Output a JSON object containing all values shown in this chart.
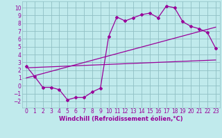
{
  "xlabel": "Windchill (Refroidissement éolien,°C)",
  "bg_color": "#c0eaec",
  "grid_color": "#90c0c4",
  "line_color": "#990099",
  "xlim": [
    -0.5,
    23.5
  ],
  "ylim": [
    -2.8,
    10.8
  ],
  "xticks": [
    0,
    1,
    2,
    3,
    4,
    5,
    6,
    7,
    8,
    9,
    10,
    11,
    12,
    13,
    14,
    15,
    16,
    17,
    18,
    19,
    20,
    21,
    22,
    23
  ],
  "yticks": [
    -2,
    -1,
    0,
    1,
    2,
    3,
    4,
    5,
    6,
    7,
    8,
    9,
    10
  ],
  "line1_x": [
    0,
    1,
    2,
    3,
    4,
    5,
    6,
    7,
    8,
    9,
    10,
    11,
    12,
    13,
    14,
    15,
    16,
    17,
    18,
    19,
    20,
    21,
    22,
    23
  ],
  "line1_y": [
    2.5,
    1.2,
    -0.2,
    -0.2,
    -0.5,
    -1.8,
    -1.5,
    -1.5,
    -0.8,
    -0.3,
    6.3,
    8.8,
    8.3,
    8.7,
    9.1,
    9.3,
    8.7,
    10.2,
    10.0,
    8.2,
    7.6,
    7.3,
    6.8,
    4.8
  ],
  "line2_x": [
    0,
    23
  ],
  "line2_y": [
    2.3,
    3.3
  ],
  "line3_x": [
    0,
    23
  ],
  "line3_y": [
    1.0,
    7.5
  ],
  "marker": "D",
  "markersize": 2.0,
  "linewidth": 0.9,
  "tick_fontsize": 5.5,
  "xlabel_fontsize": 6.0
}
